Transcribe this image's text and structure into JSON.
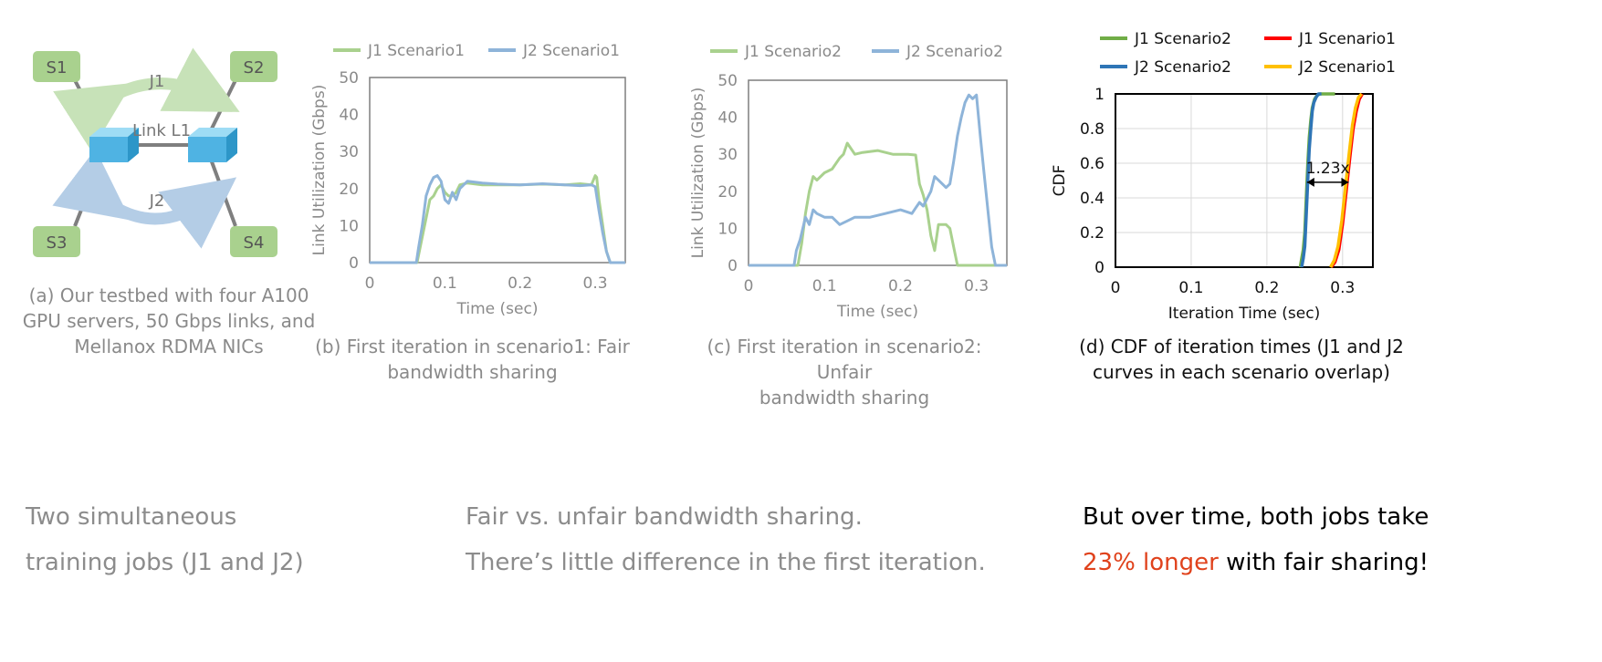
{
  "testbed": {
    "nodes": [
      "S1",
      "S2",
      "S3",
      "S4"
    ],
    "job1_label": "J1",
    "job2_label": "J2",
    "link_label": "Link L1",
    "caption_line1": "(a) Our testbed with four A100",
    "caption_line2": "GPU servers, 50 Gbps links, and",
    "caption_line3": "Mellanox RDMA NICs",
    "colors": {
      "server": "#a9d18e",
      "switch": "#5bc0eb",
      "job1_arrow": "#c7e2b8",
      "job2_arrow": "#b4cde6",
      "link": "#7f7f7f"
    }
  },
  "chart_data": [
    {
      "type": "line",
      "caption_line1": "(b) First iteration in scenario1: Fair",
      "caption_line2": "bandwidth sharing",
      "xlabel": "Time (sec)",
      "ylabel": "Link Utilization (Gbps)",
      "xlim": [
        0,
        0.34
      ],
      "ylim": [
        0,
        50
      ],
      "xticks": [
        "0",
        "0.1",
        "0.2",
        "0.3"
      ],
      "yticks": [
        "0",
        "10",
        "20",
        "30",
        "40",
        "50"
      ],
      "legend_position": "top",
      "series": [
        {
          "name": "J1 Scenario1",
          "color": "#a9d18e",
          "x": [
            0,
            0.063,
            0.068,
            0.075,
            0.08,
            0.085,
            0.09,
            0.095,
            0.1,
            0.105,
            0.11,
            0.115,
            0.12,
            0.13,
            0.15,
            0.17,
            0.2,
            0.23,
            0.26,
            0.28,
            0.295,
            0.3,
            0.302,
            0.305,
            0.31,
            0.315,
            0.32,
            0.34
          ],
          "y": [
            0,
            0,
            5,
            12,
            17,
            18,
            20,
            21,
            19,
            18,
            18,
            19,
            21,
            21.5,
            21,
            21,
            21,
            21.2,
            21,
            21.3,
            21,
            23.5,
            23,
            17,
            10,
            3,
            0,
            0
          ]
        },
        {
          "name": "J2 Scenario1",
          "color": "#8eb4d9",
          "x": [
            0,
            0.062,
            0.065,
            0.07,
            0.075,
            0.08,
            0.085,
            0.09,
            0.095,
            0.1,
            0.105,
            0.11,
            0.115,
            0.12,
            0.13,
            0.15,
            0.17,
            0.2,
            0.23,
            0.26,
            0.28,
            0.295,
            0.3,
            0.305,
            0.31,
            0.315,
            0.32,
            0.34
          ],
          "y": [
            0,
            0,
            4,
            10,
            18,
            21,
            23,
            23.5,
            22,
            17,
            16,
            19,
            17,
            20,
            22,
            21.5,
            21.2,
            21,
            21.3,
            21,
            20.8,
            21,
            20.5,
            14,
            8,
            3,
            0,
            0
          ]
        }
      ]
    },
    {
      "type": "line",
      "caption_line1": "(c) First iteration in scenario2: Unfair",
      "caption_line2": "bandwidth sharing",
      "xlabel": "Time (sec)",
      "ylabel": "Link Utilization (Gbps)",
      "xlim": [
        0,
        0.34
      ],
      "ylim": [
        0,
        50
      ],
      "xticks": [
        "0",
        "0.1",
        "0.2",
        "0.3"
      ],
      "yticks": [
        "0",
        "10",
        "20",
        "30",
        "40",
        "50"
      ],
      "legend_position": "top",
      "series": [
        {
          "name": "J1 Scenario2",
          "color": "#a9d18e",
          "x": [
            0,
            0.065,
            0.07,
            0.075,
            0.08,
            0.085,
            0.09,
            0.1,
            0.11,
            0.12,
            0.125,
            0.13,
            0.14,
            0.15,
            0.17,
            0.19,
            0.21,
            0.22,
            0.225,
            0.23,
            0.235,
            0.24,
            0.245,
            0.25,
            0.255,
            0.26,
            0.265,
            0.27,
            0.275,
            0.34
          ],
          "y": [
            0,
            0,
            6,
            14,
            20,
            24,
            23,
            25,
            26,
            29,
            30,
            33,
            30,
            30.5,
            31,
            30,
            30,
            29.8,
            22,
            19,
            15,
            8,
            4,
            11,
            11,
            11,
            10,
            5,
            0,
            0
          ]
        },
        {
          "name": "J2 Scenario2",
          "color": "#8eb4d9",
          "x": [
            0,
            0.06,
            0.063,
            0.068,
            0.075,
            0.08,
            0.085,
            0.09,
            0.1,
            0.11,
            0.12,
            0.13,
            0.14,
            0.16,
            0.18,
            0.2,
            0.215,
            0.22,
            0.225,
            0.23,
            0.24,
            0.245,
            0.25,
            0.26,
            0.265,
            0.27,
            0.275,
            0.28,
            0.285,
            0.29,
            0.295,
            0.3,
            0.305,
            0.31,
            0.315,
            0.32,
            0.325,
            0.34
          ],
          "y": [
            0,
            0,
            4,
            7,
            13,
            11,
            15,
            14,
            13,
            13,
            11,
            12,
            13,
            13,
            14,
            15,
            14,
            15.5,
            17,
            16,
            20,
            24,
            23,
            21,
            22,
            28,
            35,
            40,
            44,
            46,
            45,
            46,
            35,
            25,
            15,
            5,
            0,
            0
          ]
        }
      ]
    },
    {
      "type": "line",
      "caption_line1": "(d) CDF of iteration times (J1 and J2",
      "caption_line2": "curves in each scenario overlap)",
      "xlabel": "Iteration Time (sec)",
      "ylabel": "CDF",
      "xlim": [
        0,
        0.34
      ],
      "ylim": [
        0,
        1
      ],
      "xticks": [
        "0",
        "0.1",
        "0.2",
        "0.3"
      ],
      "yticks": [
        "0",
        "0.2",
        "0.4",
        "0.6",
        "0.8",
        "1"
      ],
      "annotation": "1.23x",
      "legend_position": "top",
      "series": [
        {
          "name": "J1 Scenario2",
          "color": "#70ad47",
          "x": [
            0.244,
            0.246,
            0.248,
            0.25,
            0.252,
            0.254,
            0.256,
            0.258,
            0.26,
            0.263,
            0.266,
            0.27,
            0.29
          ],
          "y": [
            0,
            0.05,
            0.1,
            0.2,
            0.4,
            0.6,
            0.75,
            0.85,
            0.92,
            0.97,
            0.99,
            1,
            1
          ]
        },
        {
          "name": "J1 Scenario1",
          "color": "#ff0000",
          "x": [
            0.285,
            0.29,
            0.295,
            0.3,
            0.305,
            0.31,
            0.314,
            0.318,
            0.322,
            0.326
          ],
          "y": [
            0,
            0.03,
            0.1,
            0.25,
            0.45,
            0.65,
            0.8,
            0.9,
            0.97,
            1
          ]
        },
        {
          "name": "J2 Scenario2",
          "color": "#2e75b6",
          "x": [
            0.246,
            0.248,
            0.25,
            0.252,
            0.254,
            0.256,
            0.258,
            0.26,
            0.262,
            0.265,
            0.268,
            0.272
          ],
          "y": [
            0,
            0.05,
            0.12,
            0.3,
            0.5,
            0.68,
            0.8,
            0.9,
            0.95,
            0.98,
            1,
            1
          ]
        },
        {
          "name": "J2 Scenario1",
          "color": "#ffc000",
          "x": [
            0.284,
            0.289,
            0.294,
            0.299,
            0.304,
            0.309,
            0.313,
            0.317,
            0.321,
            0.325
          ],
          "y": [
            0,
            0.04,
            0.12,
            0.27,
            0.47,
            0.67,
            0.82,
            0.92,
            0.98,
            1
          ]
        }
      ]
    }
  ],
  "footer": {
    "left_line1": "Two simultaneous",
    "left_line2": "training jobs (J1 and J2)",
    "middle_line1": "Fair vs. unfair bandwidth sharing.",
    "middle_line2": "There’s little difference in the first iteration.",
    "right_part1": "But over time, ",
    "right_bold": "both jobs",
    "right_part2": " take",
    "right_accent": "23% longer",
    "right_part3": " with fair sharing!"
  }
}
